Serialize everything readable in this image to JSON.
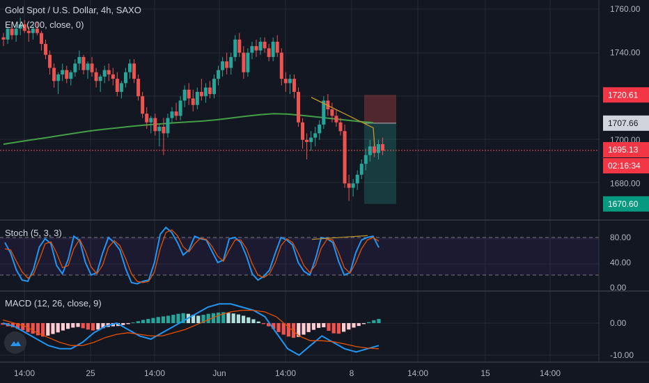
{
  "header": {
    "symbol_line": "Gold Spot / U.S. Dollar, 4h, SAXO",
    "ema_label": "EMA (200, close, 0)"
  },
  "colors": {
    "background": "#131722",
    "grid": "#242834",
    "up": "#26a69a",
    "down": "#ef5350",
    "ema": "#43a047",
    "stoch_k": "#2196f3",
    "stoch_d": "#e65100",
    "trendline": "#c49a27"
  },
  "chart_data": [
    {
      "type": "candlestick",
      "title": "Gold Spot / U.S. Dollar, 4h, SAXO",
      "ylim": [
        1660,
        1765
      ],
      "x_ticks": [
        "14:00",
        "25",
        "14:00",
        "Jun",
        "14:00",
        "8",
        "14:00",
        "15",
        "14:00"
      ],
      "y_ticks": [
        "1760.00",
        "1740.00",
        "1720.00",
        "1700.00",
        "1680.00"
      ],
      "price_labels": [
        {
          "value": 1720.61,
          "text": "1720.61",
          "role": "stop-loss"
        },
        {
          "value": 1707.66,
          "text": "1707.66",
          "role": "entry"
        },
        {
          "value": 1695.13,
          "text": "1695.13",
          "role": "last-price"
        },
        {
          "value": 1670.6,
          "text": "1670.60",
          "role": "take-profit"
        }
      ],
      "countdown": "02:16:34",
      "ohlc": [
        [
          1747,
          1749,
          1743,
          1746
        ],
        [
          1746,
          1752,
          1744,
          1751
        ],
        [
          1751,
          1754,
          1746,
          1748
        ],
        [
          1748,
          1753,
          1745,
          1751
        ],
        [
          1751,
          1756,
          1748,
          1753
        ],
        [
          1753,
          1755,
          1749,
          1750
        ],
        [
          1750,
          1752,
          1745,
          1749
        ],
        [
          1749,
          1753,
          1746,
          1751
        ],
        [
          1751,
          1754,
          1748,
          1749
        ],
        [
          1749,
          1750,
          1741,
          1744
        ],
        [
          1744,
          1746,
          1737,
          1739
        ],
        [
          1739,
          1741,
          1730,
          1733
        ],
        [
          1733,
          1735,
          1724,
          1727
        ],
        [
          1727,
          1731,
          1721,
          1730
        ],
        [
          1730,
          1735,
          1727,
          1732
        ],
        [
          1732,
          1734,
          1726,
          1728
        ],
        [
          1728,
          1732,
          1725,
          1731
        ],
        [
          1731,
          1737,
          1729,
          1735
        ],
        [
          1735,
          1741,
          1732,
          1738
        ],
        [
          1738,
          1739,
          1730,
          1732
        ],
        [
          1732,
          1736,
          1728,
          1735
        ],
        [
          1735,
          1738,
          1729,
          1731
        ],
        [
          1731,
          1733,
          1724,
          1727
        ],
        [
          1727,
          1730,
          1722,
          1729
        ],
        [
          1729,
          1734,
          1726,
          1732
        ],
        [
          1732,
          1735,
          1727,
          1730
        ],
        [
          1730,
          1733,
          1725,
          1728
        ],
        [
          1728,
          1731,
          1720,
          1722
        ],
        [
          1722,
          1727,
          1719,
          1726
        ],
        [
          1726,
          1733,
          1724,
          1731
        ],
        [
          1731,
          1737,
          1728,
          1735
        ],
        [
          1735,
          1737,
          1726,
          1728
        ],
        [
          1728,
          1730,
          1718,
          1720
        ],
        [
          1720,
          1722,
          1710,
          1712
        ],
        [
          1712,
          1715,
          1705,
          1708
        ],
        [
          1708,
          1711,
          1703,
          1710
        ],
        [
          1710,
          1712,
          1702,
          1704
        ],
        [
          1704,
          1707,
          1697,
          1706
        ],
        [
          1706,
          1710,
          1693,
          1703
        ],
        [
          1703,
          1712,
          1701,
          1710
        ],
        [
          1710,
          1715,
          1708,
          1713
        ],
        [
          1713,
          1717,
          1709,
          1711
        ],
        [
          1711,
          1720,
          1709,
          1718
        ],
        [
          1718,
          1725,
          1715,
          1723
        ],
        [
          1723,
          1726,
          1716,
          1719
        ],
        [
          1719,
          1723,
          1713,
          1716
        ],
        [
          1716,
          1724,
          1714,
          1722
        ],
        [
          1722,
          1728,
          1718,
          1720
        ],
        [
          1720,
          1726,
          1717,
          1724
        ],
        [
          1724,
          1727,
          1719,
          1721
        ],
        [
          1721,
          1730,
          1719,
          1728
        ],
        [
          1728,
          1734,
          1725,
          1732
        ],
        [
          1732,
          1738,
          1729,
          1736
        ],
        [
          1736,
          1740,
          1730,
          1733
        ],
        [
          1733,
          1740,
          1730,
          1738
        ],
        [
          1738,
          1748,
          1736,
          1746
        ],
        [
          1746,
          1749,
          1738,
          1740
        ],
        [
          1740,
          1743,
          1728,
          1731
        ],
        [
          1731,
          1742,
          1729,
          1740
        ],
        [
          1740,
          1745,
          1737,
          1743
        ],
        [
          1743,
          1746,
          1738,
          1741
        ],
        [
          1741,
          1747,
          1739,
          1745
        ],
        [
          1745,
          1747,
          1740,
          1742
        ],
        [
          1742,
          1744,
          1736,
          1738
        ],
        [
          1738,
          1747,
          1736,
          1745
        ],
        [
          1745,
          1748,
          1738,
          1740
        ],
        [
          1740,
          1742,
          1725,
          1728
        ],
        [
          1728,
          1731,
          1722,
          1726
        ],
        [
          1726,
          1730,
          1721,
          1728
        ],
        [
          1728,
          1730,
          1719,
          1722
        ],
        [
          1722,
          1724,
          1706,
          1708
        ],
        [
          1708,
          1710,
          1696,
          1700
        ],
        [
          1700,
          1703,
          1691,
          1699
        ],
        [
          1699,
          1704,
          1695,
          1701
        ],
        [
          1701,
          1706,
          1697,
          1703
        ],
        [
          1703,
          1709,
          1700,
          1707
        ],
        [
          1707,
          1720,
          1705,
          1718
        ],
        [
          1718,
          1721,
          1711,
          1714
        ],
        [
          1714,
          1717,
          1708,
          1711
        ],
        [
          1711,
          1714,
          1706,
          1708
        ],
        [
          1708,
          1710,
          1702,
          1704
        ],
        [
          1704,
          1707,
          1678,
          1680
        ],
        [
          1680,
          1684,
          1672,
          1678
        ],
        [
          1678,
          1682,
          1674,
          1680
        ],
        [
          1680,
          1686,
          1677,
          1684
        ],
        [
          1684,
          1691,
          1682,
          1689
        ],
        [
          1689,
          1696,
          1686,
          1693
        ],
        [
          1693,
          1700,
          1690,
          1697
        ],
        [
          1697,
          1701,
          1692,
          1694
        ],
        [
          1694,
          1700,
          1691,
          1698
        ],
        [
          1698,
          1701,
          1693,
          1695
        ]
      ],
      "ema200": [
        1698,
        1699,
        1700,
        1701,
        1702,
        1703,
        1704,
        1704.8,
        1705.5,
        1706.2,
        1706.8,
        1707.3,
        1707.8,
        1708.2,
        1708.6,
        1709.2,
        1710,
        1710.8,
        1711.5,
        1712,
        1711.8,
        1711.2,
        1710.5,
        1709.8,
        1709.1,
        1708.4,
        1707.9
      ]
    },
    {
      "type": "line",
      "title": "Stoch (5, 3, 3)",
      "ylim": [
        0,
        100
      ],
      "y_ticks": [
        "80.00",
        "40.00",
        "0.00"
      ],
      "bands": [
        80,
        20
      ],
      "series": [
        {
          "name": "%K",
          "values": [
            72,
            55,
            28,
            12,
            10,
            30,
            65,
            78,
            70,
            35,
            22,
            45,
            82,
            75,
            40,
            20,
            24,
            55,
            80,
            72,
            60,
            30,
            8,
            6,
            10,
            12,
            40,
            85,
            96,
            88,
            72,
            52,
            60,
            82,
            78,
            76,
            58,
            40,
            44,
            78,
            80,
            72,
            50,
            22,
            12,
            18,
            28,
            55,
            80,
            76,
            68,
            40,
            26,
            20,
            46,
            80,
            78,
            72,
            42,
            20,
            24,
            56,
            76,
            80,
            82,
            64
          ]
        },
        {
          "name": "%D",
          "values": [
            62,
            60,
            42,
            25,
            15,
            22,
            45,
            70,
            73,
            55,
            32,
            35,
            62,
            77,
            58,
            33,
            22,
            36,
            64,
            75,
            67,
            46,
            22,
            10,
            8,
            10,
            25,
            62,
            88,
            92,
            83,
            65,
            57,
            70,
            79,
            77,
            66,
            50,
            42,
            60,
            76,
            76,
            62,
            38,
            20,
            16,
            22,
            40,
            67,
            78,
            72,
            55,
            35,
            24,
            36,
            63,
            77,
            76,
            56,
            32,
            23,
            40,
            62,
            76,
            80,
            74
          ]
        }
      ]
    },
    {
      "type": "bar",
      "title": "MACD (12, 26, close, 9)",
      "ylim": [
        -12,
        8
      ],
      "y_ticks": [
        "0.00",
        "-10.00"
      ],
      "histogram": [
        -0.5,
        -1,
        -1.3,
        -1.8,
        -2.2,
        -2.8,
        -3.3,
        -3.8,
        -4.2,
        -3.9,
        -3.4,
        -2.9,
        -2.3,
        -1.8,
        -1.4,
        -1.2,
        -1.6,
        -2.0,
        -2.3,
        -2.0,
        -1.6,
        -1.2,
        -1.0,
        -0.9,
        -0.6,
        -0.3,
        0.2,
        0.6,
        1.0,
        1.3,
        1.6,
        1.9,
        2.1,
        2.3,
        2.6,
        2.9,
        3.1,
        2.9,
        2.6,
        2.3,
        2.6,
        2.9,
        3.1,
        3.3,
        3.4,
        3.2,
        3.0,
        2.7,
        2.3,
        1.8,
        1.2,
        0.5,
        -0.3,
        -1.0,
        -1.8,
        -2.8,
        -3.6,
        -4.2,
        -4.6,
        -4.3,
        -3.6,
        -2.8,
        -2.1,
        -1.5,
        -1.3,
        -2.4,
        -3.2,
        -3.3,
        -2.7,
        -2.0,
        -1.4,
        -0.9,
        -0.3,
        0.3,
        0.9,
        1.3
      ],
      "series": [
        {
          "name": "MACD",
          "values": [
            0,
            -1,
            -3,
            -5,
            -7,
            -8,
            -8,
            -6,
            -3,
            -1,
            0,
            -2,
            -4,
            -5,
            -3,
            -1,
            1,
            3,
            5,
            6,
            6,
            5,
            4,
            2,
            -3,
            -8,
            -10,
            -7,
            -4,
            -6,
            -8,
            -9,
            -8,
            -7
          ]
        },
        {
          "name": "Signal",
          "values": [
            1,
            0,
            -1,
            -3,
            -4.5,
            -6,
            -7,
            -7,
            -6,
            -4.5,
            -3.5,
            -3,
            -3.5,
            -4,
            -4,
            -3,
            -2,
            -0.5,
            1,
            2.5,
            3.5,
            4,
            4,
            3.5,
            2,
            -1,
            -4,
            -5.5,
            -5.5,
            -5.8,
            -6.5,
            -7.3,
            -7.8,
            -8
          ]
        }
      ]
    }
  ]
}
